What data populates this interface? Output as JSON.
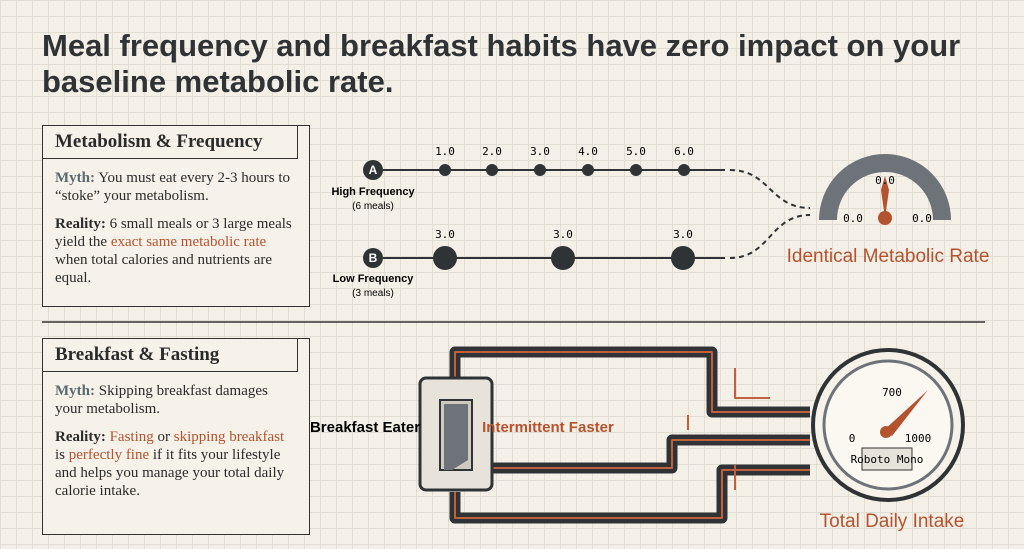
{
  "header": {
    "title": "Meal frequency and breakfast habits have zero impact on your baseline metabolic rate."
  },
  "panels": [
    {
      "heading": "Metabolism & Frequency",
      "myth_label": "Myth:",
      "myth_text": "You must eat every 2-3 hours to “stoke” your metabolism.",
      "reality_label": "Reality:",
      "reality_segments": [
        "6 small meals or 3 large meals yield the ",
        "exact same metabolic rate",
        " when total calories and nutrients are equal."
      ]
    },
    {
      "heading": "Breakfast & Fasting",
      "myth_label": "Myth:",
      "myth_text": "Skipping breakfast damages your metabolism.",
      "reality_label": "Reality:",
      "reality_segments": [
        "Fasting",
        " or ",
        "skipping breakfast",
        " is ",
        "perfectly fine",
        " if it fits your lifestyle and helps you manage your total daily calorie intake."
      ]
    }
  ],
  "frequency_diagram": {
    "rows": [
      {
        "marker": "A",
        "label": "High Frequency",
        "sublabel": "(6 meals)",
        "meal_labels": [
          "1.0",
          "2.0",
          "3.0",
          "4.0",
          "5.0",
          "6.0"
        ]
      },
      {
        "marker": "B",
        "label": "Low Frequency",
        "sublabel": "(3 meals)",
        "meal_labels": [
          "3.0",
          "3.0",
          "3.0"
        ]
      }
    ],
    "gauge_labels": [
      "0.0",
      "0.0",
      "0.0"
    ],
    "caption": "Identical Metabolic Rate"
  },
  "breakfast_diagram": {
    "left_label": "Breakfast Eater",
    "middle_label": "Intermittent Faster",
    "gauge_labels": [
      "0",
      "700",
      "1000"
    ],
    "gauge_badge": "Roboto Mono",
    "caption": "Total Daily Intake"
  }
}
